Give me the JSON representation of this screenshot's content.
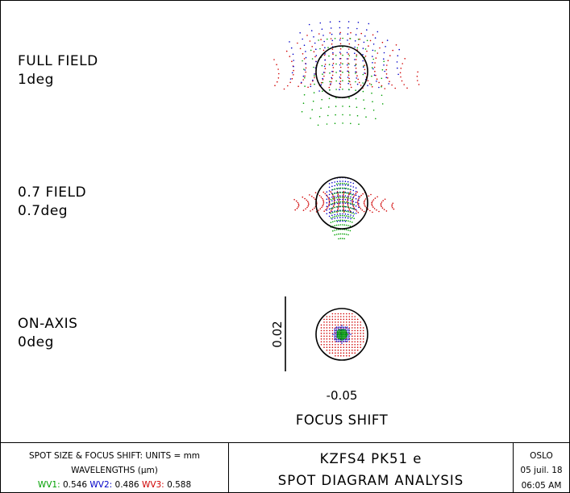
{
  "fields": [
    {
      "name": "FULL FIELD",
      "angle": "1deg"
    },
    {
      "name": "0.7 FIELD",
      "angle": "0.7deg"
    },
    {
      "name": "ON-AXIS",
      "angle": "0deg"
    }
  ],
  "scale_label": "0.02",
  "focus_value": "-0.05",
  "focus_title": "FOCUS SHIFT",
  "footer": {
    "units_line": "SPOT SIZE & FOCUS SHIFT: UNITS = mm",
    "wavelengths_line": "WAVELENGTHS (μm)",
    "wv1_label": "WV1:",
    "wv1_value": "0.546",
    "wv2_label": "WV2:",
    "wv2_value": "0.486",
    "wv3_label": "WV3:",
    "wv3_value": "0.588",
    "lens_title": "KZFS4 PK51 e",
    "analysis_title": "SPOT DIAGRAM ANALYSIS",
    "program": "OSLO",
    "date": "05 juil. 18",
    "time": "06:05 AM"
  },
  "colors": {
    "wv1": "#00a000",
    "wv2": "#0000c8",
    "wv3": "#d00000"
  }
}
